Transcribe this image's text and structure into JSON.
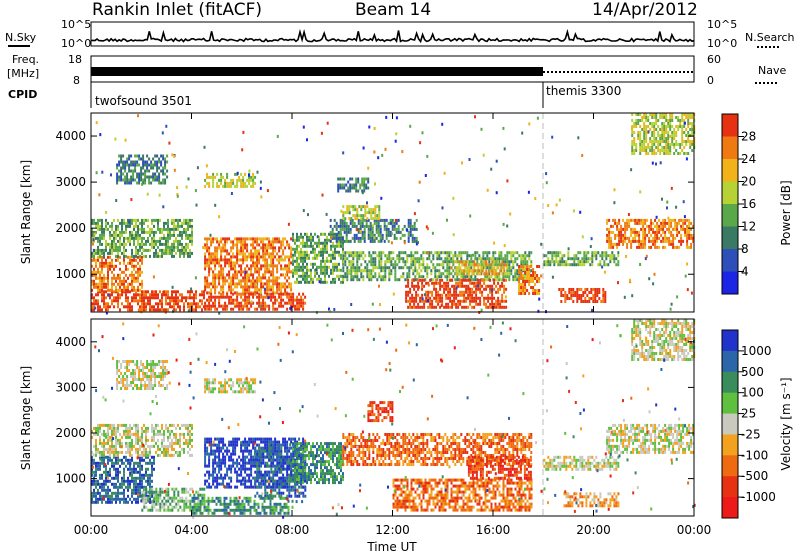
{
  "header": {
    "station": "Rankin Inlet (fitACF)",
    "beam": "Beam 14",
    "date": "14/Apr/2012"
  },
  "sky_panel": {
    "left_label": "N.Sky",
    "right_label": "N.Search",
    "left_ticks": [
      "10^5",
      "10^0"
    ],
    "right_ticks": [
      "10^5",
      "10^0"
    ]
  },
  "freq_panel": {
    "left_label_1": "Freq.",
    "left_label_2": "[MHz]",
    "left_ticks": [
      "18",
      "8"
    ],
    "right_ticks": [
      "60",
      "0"
    ],
    "right_label": "Nave",
    "cpid_label": "CPID",
    "modes": [
      {
        "name": "twofsound 3501",
        "start_hour": 0,
        "end_hour": 18
      },
      {
        "name": "themis 3300",
        "start_hour": 18,
        "end_hour": 24
      }
    ]
  },
  "chart_data": [
    {
      "type": "heatmap",
      "quantity": "Power",
      "ylabel": "Slant Range [km]",
      "xlabel": "",
      "x_range_hours": [
        0,
        24
      ],
      "ylim": [
        180,
        4500
      ],
      "y_ticks": [
        "1000",
        "2000",
        "3000",
        "4000"
      ],
      "colorbar_label": "Power [dB]",
      "colorbar_ticks": [
        "4",
        "8",
        "12",
        "16",
        "20",
        "24",
        "28"
      ],
      "colorbar_colors": [
        "#1c24e6",
        "#2f4fb8",
        "#3a7a64",
        "#5aa84a",
        "#b7d234",
        "#f1b21a",
        "#f07a12",
        "#e63212"
      ],
      "features": [
        {
          "x0": 0.0,
          "x1": 4.5,
          "y0": 250,
          "y1": 650,
          "level": 7
        },
        {
          "x0": 0.0,
          "x1": 2.0,
          "y0": 650,
          "y1": 1400,
          "level": 6
        },
        {
          "x0": 4.5,
          "x1": 8.0,
          "y0": 600,
          "y1": 1800,
          "level": 6
        },
        {
          "x0": 4.5,
          "x1": 8.5,
          "y0": 250,
          "y1": 600,
          "level": 7
        },
        {
          "x0": 0.0,
          "x1": 4.0,
          "y0": 1400,
          "y1": 2200,
          "level": 3
        },
        {
          "x0": 8.0,
          "x1": 10.0,
          "y0": 800,
          "y1": 1900,
          "level": 3
        },
        {
          "x0": 9.5,
          "x1": 13.0,
          "y0": 1700,
          "y1": 2200,
          "level": 2
        },
        {
          "x0": 10.0,
          "x1": 17.5,
          "y0": 900,
          "y1": 1500,
          "level": 3
        },
        {
          "x0": 12.5,
          "x1": 16.5,
          "y0": 250,
          "y1": 900,
          "level": 7
        },
        {
          "x0": 14.5,
          "x1": 16.5,
          "y0": 1000,
          "y1": 1300,
          "level": 5
        },
        {
          "x0": 17.0,
          "x1": 17.8,
          "y0": 600,
          "y1": 1200,
          "level": 6
        },
        {
          "x0": 18.0,
          "x1": 21.0,
          "y0": 1200,
          "y1": 1500,
          "level": 3
        },
        {
          "x0": 18.6,
          "x1": 20.5,
          "y0": 400,
          "y1": 700,
          "level": 7
        },
        {
          "x0": 20.5,
          "x1": 24.0,
          "y0": 1600,
          "y1": 2200,
          "level": 6
        },
        {
          "x0": 21.5,
          "x1": 24.0,
          "y0": 3600,
          "y1": 4500,
          "level": 4
        },
        {
          "x0": 1.0,
          "x1": 3.0,
          "y0": 3000,
          "y1": 3600,
          "level": 2
        },
        {
          "x0": 4.5,
          "x1": 6.5,
          "y0": 2900,
          "y1": 3200,
          "level": 4
        },
        {
          "x0": 9.8,
          "x1": 11.0,
          "y0": 2800,
          "y1": 3100,
          "level": 2
        },
        {
          "x0": 10.0,
          "x1": 11.5,
          "y0": 2200,
          "y1": 2500,
          "level": 4
        }
      ]
    },
    {
      "type": "heatmap",
      "quantity": "Velocity",
      "ylabel": "Slant Range [km]",
      "xlabel": "Time UT",
      "x_range_hours": [
        0,
        24
      ],
      "x_ticks": [
        "00:00",
        "04:00",
        "08:00",
        "12:00",
        "16:00",
        "20:00",
        "00:00"
      ],
      "ylim": [
        180,
        4500
      ],
      "y_ticks": [
        "1000",
        "2000",
        "3000",
        "4000"
      ],
      "colorbar_label": "Velocity [m s⁻¹]",
      "colorbar_ticks": [
        "1000",
        "500",
        "100",
        "25",
        "-25",
        "-100",
        "-500",
        "-1000"
      ],
      "colorbar_colors": [
        "#2233cc",
        "#2a66a8",
        "#3a8c5c",
        "#5fbf3f",
        "#c9c9c0",
        "#f2a21e",
        "#f06a12",
        "#e63212",
        "#ee1a1a"
      ],
      "features": [
        {
          "x0": 0.0,
          "x1": 2.5,
          "y0": 500,
          "y1": 1500,
          "level": 1
        },
        {
          "x0": 2.0,
          "x1": 4.5,
          "y0": 300,
          "y1": 800,
          "level": 3
        },
        {
          "x0": 4.5,
          "x1": 8.5,
          "y0": 800,
          "y1": 1900,
          "level": 0
        },
        {
          "x0": 6.5,
          "x1": 8.5,
          "y0": 600,
          "y1": 1700,
          "level": 1
        },
        {
          "x0": 4.0,
          "x1": 8.0,
          "y0": 250,
          "y1": 600,
          "level": 2
        },
        {
          "x0": 0.0,
          "x1": 4.0,
          "y0": 1500,
          "y1": 2200,
          "level": 4
        },
        {
          "x0": 8.0,
          "x1": 10.0,
          "y0": 900,
          "y1": 1800,
          "level": 2
        },
        {
          "x0": 10.0,
          "x1": 17.5,
          "y0": 1300,
          "y1": 2000,
          "level": 6
        },
        {
          "x0": 12.0,
          "x1": 17.5,
          "y0": 300,
          "y1": 1000,
          "level": 6
        },
        {
          "x0": 15.0,
          "x1": 17.5,
          "y0": 1000,
          "y1": 1500,
          "level": 7
        },
        {
          "x0": 18.0,
          "x1": 21.0,
          "y0": 1200,
          "y1": 1500,
          "level": 4
        },
        {
          "x0": 18.8,
          "x1": 21.0,
          "y0": 400,
          "y1": 700,
          "level": 5
        },
        {
          "x0": 20.5,
          "x1": 24.0,
          "y0": 1600,
          "y1": 2200,
          "level": 4
        },
        {
          "x0": 21.5,
          "x1": 24.0,
          "y0": 3600,
          "y1": 4500,
          "level": 4
        },
        {
          "x0": 1.0,
          "x1": 3.0,
          "y0": 3000,
          "y1": 3600,
          "level": 4
        },
        {
          "x0": 4.5,
          "x1": 6.5,
          "y0": 2900,
          "y1": 3200,
          "level": 4
        },
        {
          "x0": 11.0,
          "x1": 12.0,
          "y0": 2300,
          "y1": 2700,
          "level": 7
        }
      ]
    }
  ]
}
